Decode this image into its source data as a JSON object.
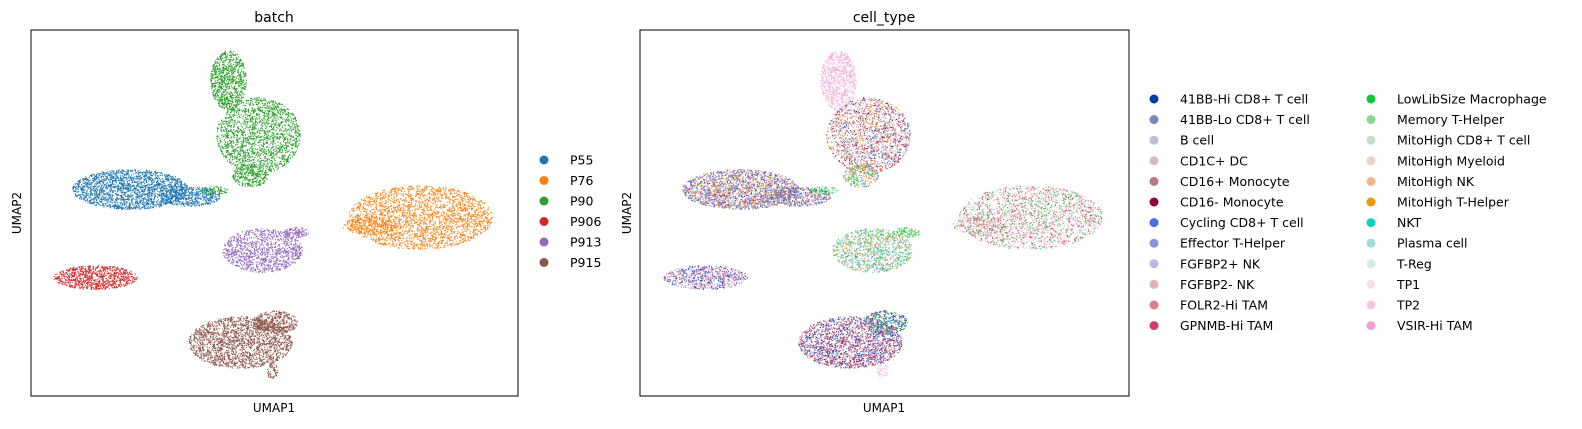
{
  "chart_data": [
    {
      "type": "scatter",
      "title": "batch",
      "xlabel": "UMAP1",
      "ylabel": "UMAP2",
      "legend_placement": "right",
      "grid": false,
      "series": [
        {
          "name": "P55",
          "color": "#1f77b4"
        },
        {
          "name": "P76",
          "color": "#ff7f0e"
        },
        {
          "name": "P90",
          "color": "#2ca02c"
        },
        {
          "name": "P906",
          "color": "#d62728"
        },
        {
          "name": "P913",
          "color": "#9467bd"
        },
        {
          "name": "P915",
          "color": "#8c564b"
        }
      ]
    },
    {
      "type": "scatter",
      "title": "cell_type",
      "xlabel": "UMAP1",
      "ylabel": "UMAP2",
      "legend_placement": "right",
      "grid": false,
      "series": [
        {
          "name": "41BB-Hi CD8+ T cell",
          "color": "#023fa5"
        },
        {
          "name": "41BB-Lo CD8+ T cell",
          "color": "#7d87b9"
        },
        {
          "name": "B cell",
          "color": "#bec1d4"
        },
        {
          "name": "CD1C+ DC",
          "color": "#d6bcc0"
        },
        {
          "name": "CD16+ Monocyte",
          "color": "#bb7784"
        },
        {
          "name": "CD16- Monocyte",
          "color": "#8e063b"
        },
        {
          "name": "Cycling CD8+ T cell",
          "color": "#4a6fe3"
        },
        {
          "name": "Effector T-Helper",
          "color": "#8595e1"
        },
        {
          "name": "FGFBP2+ NK",
          "color": "#b5bbe3"
        },
        {
          "name": "FGFBP2- NK",
          "color": "#e6afb9"
        },
        {
          "name": "FOLR2-Hi TAM",
          "color": "#e07b91"
        },
        {
          "name": "GPNMB-Hi TAM",
          "color": "#d33f6a"
        },
        {
          "name": "LowLibSize Macrophage",
          "color": "#11c638"
        },
        {
          "name": "Memory T-Helper",
          "color": "#8dd593"
        },
        {
          "name": "MitoHigh CD8+ T cell",
          "color": "#c6dec7"
        },
        {
          "name": "MitoHigh Myeloid",
          "color": "#ead3c6"
        },
        {
          "name": "MitoHigh NK",
          "color": "#f0b98d"
        },
        {
          "name": "MitoHigh T-Helper",
          "color": "#ef9708"
        },
        {
          "name": "NKT",
          "color": "#0fcfc0"
        },
        {
          "name": "Plasma cell",
          "color": "#9cded6"
        },
        {
          "name": "T-Reg",
          "color": "#d5eae7"
        },
        {
          "name": "TP1",
          "color": "#f3e1eb"
        },
        {
          "name": "TP2",
          "color": "#f6c4e1"
        },
        {
          "name": "VSIR-Hi TAM",
          "color": "#f79cd4"
        }
      ]
    }
  ]
}
